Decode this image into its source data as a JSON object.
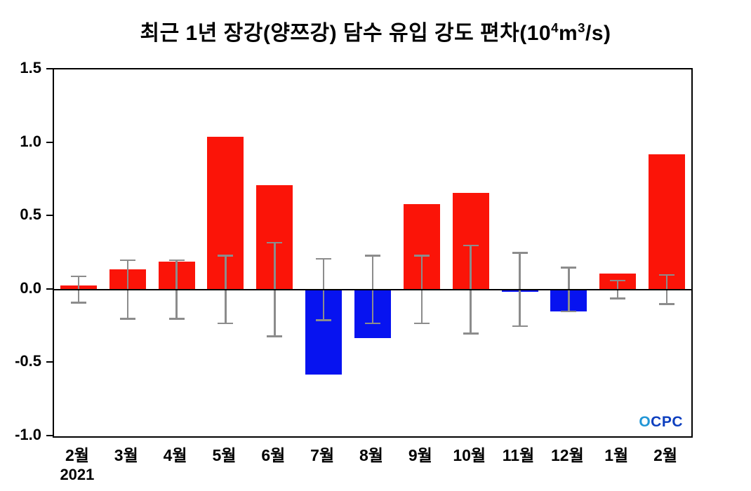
{
  "title": "최근 1년 장강(양쯔강) 담수 유입 강도 편차(10^4 m^3/s)",
  "title_parts": {
    "pre": "최근 1년 장강(양쯔강) 담수 유입 강도 편차(10",
    "sup4": "4",
    "mid": "m",
    "sup3": "3",
    "post": "/s)"
  },
  "logo": {
    "o": "O",
    "cpc": "CPC"
  },
  "chart_data": {
    "type": "bar",
    "title": "최근 1년 장강(양쯔강) 담수 유입 강도 편차(10⁴m³/s)",
    "xlabel": "",
    "ylabel": "",
    "year_label": "2021",
    "categories": [
      "2월",
      "3월",
      "4월",
      "5월",
      "6월",
      "7월",
      "8월",
      "9월",
      "10월",
      "11월",
      "12월",
      "1월",
      "2월"
    ],
    "values": [
      0.03,
      0.14,
      0.19,
      1.04,
      0.71,
      -0.58,
      -0.33,
      0.58,
      0.66,
      -0.015,
      -0.15,
      0.11,
      0.92
    ],
    "errors": [
      0.09,
      0.2,
      0.2,
      0.23,
      0.32,
      0.21,
      0.23,
      0.23,
      0.3,
      0.25,
      0.15,
      0.06,
      0.1
    ],
    "error_center": 0,
    "ylim": [
      -1.0,
      1.5
    ],
    "yticks": [
      {
        "v": 1.5,
        "label": "1.5"
      },
      {
        "v": 1.0,
        "label": "1.0"
      },
      {
        "v": 0.5,
        "label": "0.5"
      },
      {
        "v": 0.0,
        "label": "0.0"
      },
      {
        "v": -0.5,
        "label": "-0.5"
      },
      {
        "v": -1.0,
        "label": "-1.0"
      }
    ],
    "positive_color": "#fb1408",
    "negative_color": "#0713f0",
    "error_color": "#8c8c8c",
    "zero_line_color": "#000000",
    "grid": false,
    "legend": "none"
  }
}
